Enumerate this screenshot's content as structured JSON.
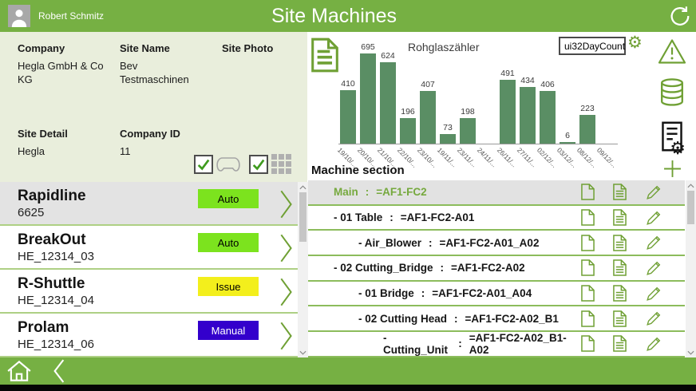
{
  "header": {
    "user_name": "Robert Schmitz",
    "title": "Site Machines"
  },
  "site_info": {
    "company_label": "Company",
    "company_value": "Hegla GmbH & Co KG",
    "site_name_label": "Site Name",
    "site_name_value": "Bev Testmaschinen",
    "site_photo_label": "Site Photo",
    "site_detail_label": "Site Detail",
    "site_detail_value": "Hegla",
    "company_id_label": "Company ID",
    "company_id_value": "11",
    "gamepad_checkbox_checked": true,
    "grid_checkbox_checked": true
  },
  "machines": [
    {
      "name": "Rapidline",
      "id": "6625",
      "status": "Auto",
      "status_color": "#7ce31e",
      "text_color": "#000000",
      "selected": true
    },
    {
      "name": "BreakOut",
      "id": "HE_12314_03",
      "status": "Auto",
      "status_color": "#7ce31e",
      "text_color": "#000000",
      "selected": false
    },
    {
      "name": "R-Shuttle",
      "id": "HE_12314_04",
      "status": "Issue",
      "status_color": "#f3ef1c",
      "text_color": "#000000",
      "selected": false
    },
    {
      "name": "Prolam",
      "id": "HE_12314_06",
      "status": "Manual",
      "status_color": "#3300cc",
      "text_color": "#ffffff",
      "selected": false
    }
  ],
  "chart_data": {
    "type": "bar",
    "title": "Rohglaszähler",
    "categories": [
      "19/10/...",
      "20/10/...",
      "21/10/...",
      "22/10/...",
      "23/10/...",
      "19/11/...",
      "23/11/...",
      "24/11/...",
      "26/11/...",
      "27/11/...",
      "02/12/...",
      "03/12/...",
      "08/12/...",
      "09/12/..."
    ],
    "values": [
      410,
      695,
      624,
      196,
      407,
      73,
      198,
      0,
      491,
      434,
      406,
      6,
      223,
      0
    ],
    "xlabel": "",
    "ylabel": "",
    "ylim": [
      0,
      700
    ],
    "grid": false,
    "legend": null,
    "bar_color": "#5a8e64",
    "dropdown_value": "ui32DayCount"
  },
  "machine_section": {
    "title": "Machine section",
    "separator": ":",
    "rows": [
      {
        "label": "Main",
        "code": "=AF1-FC2",
        "indent": 0,
        "selected": true
      },
      {
        "label": "- 01 Table",
        "code": "=AF1-FC2-A01",
        "indent": 0,
        "selected": false
      },
      {
        "label": "- Air_Blower",
        "code": "=AF1-FC2-A01_A02",
        "indent": 1,
        "selected": false
      },
      {
        "label": "- 02 Cutting_Bridge",
        "code": "=AF1-FC2-A02",
        "indent": 0,
        "selected": false
      },
      {
        "label": "- 01 Bridge",
        "code": "=AF1-FC2-A01_A04",
        "indent": 1,
        "selected": false
      },
      {
        "label": "- 02 Cutting Head",
        "code": "=AF1-FC2-A02_B1",
        "indent": 1,
        "selected": false
      },
      {
        "label": "- Cutting_Unit",
        "code": "=AF1-FC2-A02_B1-A02",
        "indent": 2,
        "selected": false
      }
    ]
  },
  "icons": {
    "gear": "⚙"
  },
  "colors": {
    "accent_green": "#76b043",
    "panel_bg": "#e9eedc",
    "bar_green": "#5a8e64",
    "tree_selected_text": "#76a93e"
  }
}
